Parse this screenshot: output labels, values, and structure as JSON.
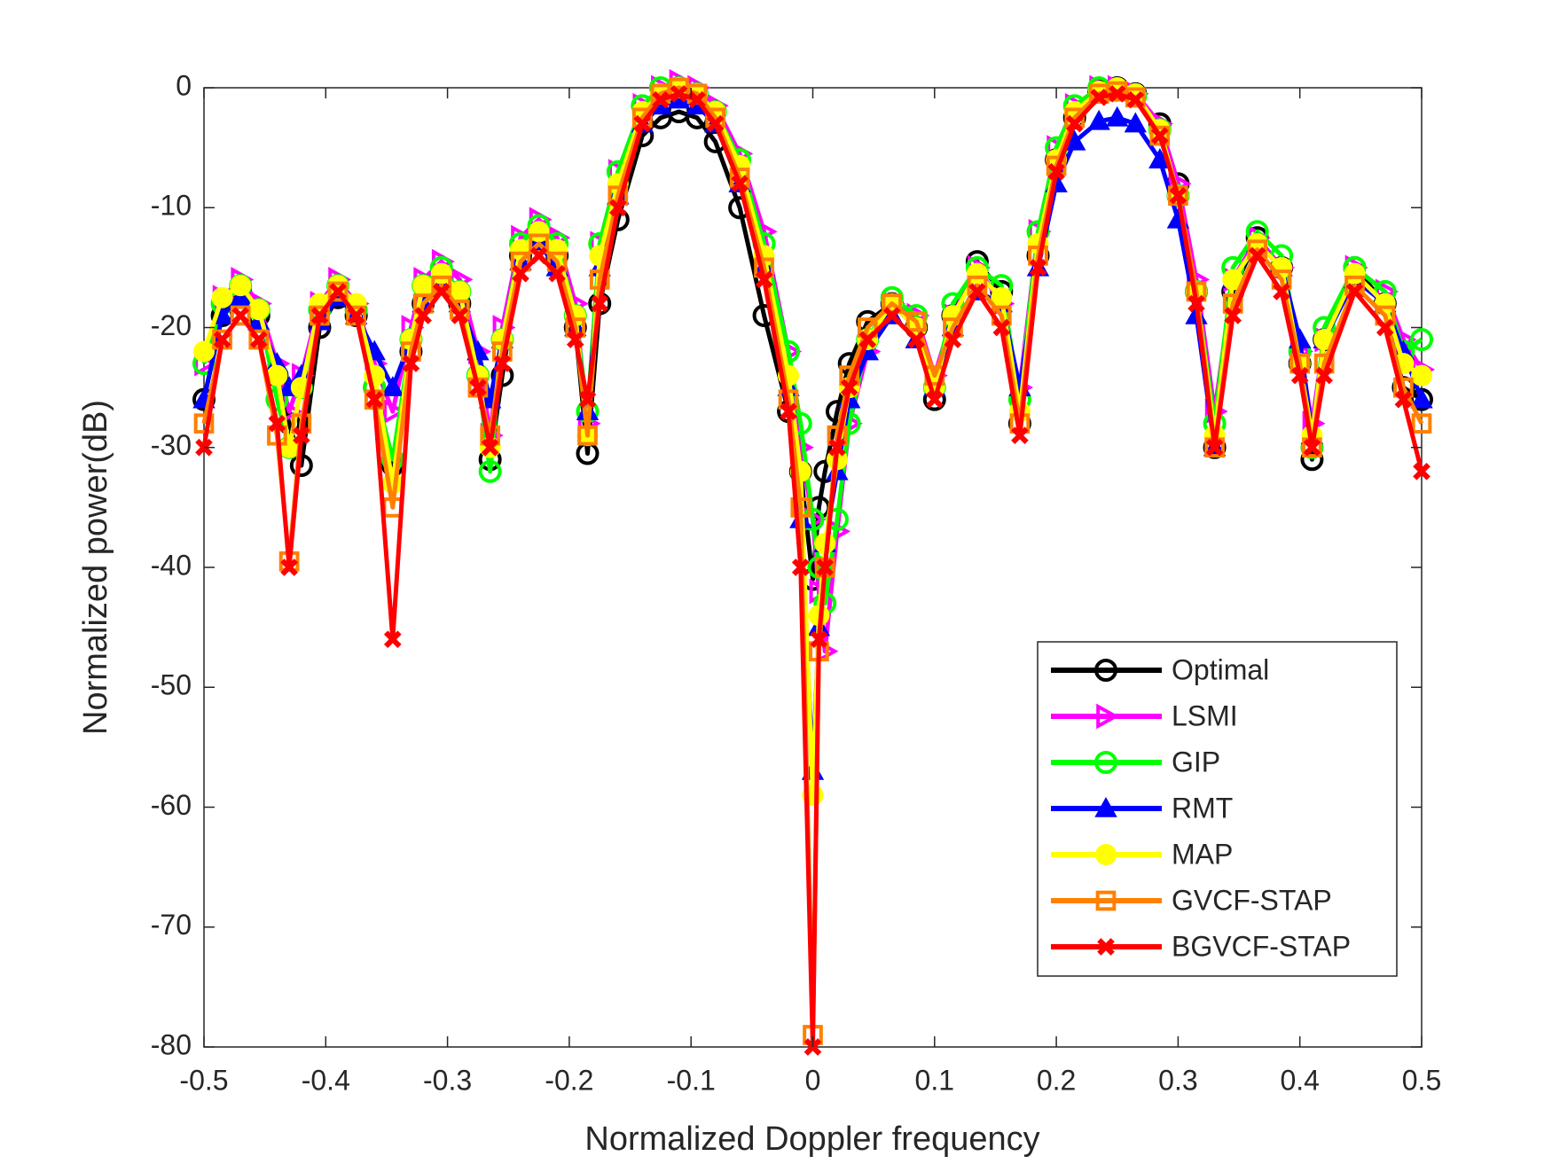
{
  "chart_data": {
    "type": "line",
    "xlabel": "Normalized Doppler frequency",
    "ylabel": "Normalized power(dB)",
    "x": [
      -0.5,
      -0.485,
      -0.47,
      -0.455,
      -0.44,
      -0.43,
      -0.42,
      -0.405,
      -0.39,
      -0.375,
      -0.36,
      -0.345,
      -0.33,
      -0.32,
      -0.305,
      -0.29,
      -0.275,
      -0.265,
      -0.255,
      -0.24,
      -0.225,
      -0.21,
      -0.195,
      -0.185,
      -0.175,
      -0.16,
      -0.14,
      -0.125,
      -0.11,
      -0.095,
      -0.08,
      -0.06,
      -0.04,
      -0.02,
      -0.01,
      0,
      0.005,
      0.01,
      0.02,
      0.03,
      0.045,
      0.065,
      0.085,
      0.1,
      0.115,
      0.135,
      0.155,
      0.17,
      0.185,
      0.2,
      0.215,
      0.235,
      0.25,
      0.265,
      0.285,
      0.3,
      0.315,
      0.33,
      0.345,
      0.365,
      0.385,
      0.4,
      0.41,
      0.42,
      0.445,
      0.47,
      0.485,
      0.5
    ],
    "series": [
      {
        "name": "Optimal",
        "color": "#000000",
        "marker": "circle",
        "values": [
          -26,
          -19,
          -17,
          -19,
          -24,
          -28,
          -31.5,
          -20,
          -17.5,
          -19,
          -25,
          -31.5,
          -22,
          -18,
          -16,
          -18,
          -24,
          -31,
          -24,
          -14,
          -12.5,
          -14,
          -20,
          -30.5,
          -18,
          -11,
          -4,
          -2.5,
          -2,
          -2.5,
          -4.5,
          -10,
          -19,
          -27,
          -32,
          -41,
          -35,
          -32,
          -27,
          -23,
          -19.5,
          -18,
          -20,
          -26,
          -19,
          -14.5,
          -17,
          -28,
          -14,
          -6,
          -2.5,
          -0.3,
          0,
          -0.5,
          -3,
          -8,
          -17,
          -30,
          -17,
          -12.5,
          -15,
          -23,
          -31,
          -21,
          -15,
          -18,
          -25,
          -26
        ]
      },
      {
        "name": "LSMI",
        "color": "#ff00ff",
        "marker": "triangle-right",
        "values": [
          -23,
          -17.5,
          -16,
          -18,
          -23,
          -27,
          -24,
          -18,
          -16,
          -18,
          -23,
          -27,
          -20,
          -16,
          -14.5,
          -16,
          -22,
          -29,
          -20,
          -12.5,
          -11,
          -12.5,
          -18,
          -28,
          -13,
          -7,
          -1.5,
          0,
          0.5,
          0,
          -1.5,
          -5.5,
          -12,
          -22,
          -30,
          -36,
          -42,
          -47,
          -37,
          -28,
          -22,
          -18,
          -19,
          -24,
          -19,
          -15,
          -18,
          -25,
          -12,
          -5,
          -1.5,
          0,
          0,
          -0.5,
          -3,
          -8,
          -16,
          -27,
          -16,
          -12.5,
          -15,
          -22,
          -28,
          -21,
          -15,
          -17,
          -21,
          -23.5
        ]
      },
      {
        "name": "GIP",
        "color": "#00ff00",
        "marker": "circle",
        "values": [
          -23,
          -18,
          -16.5,
          -18.5,
          -26,
          -30,
          -25,
          -18.5,
          -16.5,
          -18.5,
          -25,
          -31,
          -21,
          -16.5,
          -15,
          -17,
          -24,
          -32,
          -21,
          -13,
          -11.5,
          -13,
          -19,
          -27,
          -13,
          -7,
          -1.5,
          0,
          0,
          -0.5,
          -2,
          -6,
          -13,
          -22,
          -28,
          -36,
          -40,
          -43,
          -36,
          -28,
          -21,
          -17.5,
          -19,
          -25,
          -18,
          -15,
          -16.5,
          -26,
          -12,
          -5,
          -1.5,
          0,
          -0.2,
          -0.7,
          -3.5,
          -9,
          -17,
          -28,
          -15,
          -12,
          -14,
          -22,
          -30,
          -20,
          -15,
          -17,
          -22,
          -21
        ]
      },
      {
        "name": "RMT",
        "color": "#0000ff",
        "marker": "triangle-up",
        "values": [
          -26,
          -19,
          -17.5,
          -19.5,
          -23,
          -25,
          -24,
          -19.5,
          -17.5,
          -19,
          -22,
          -25,
          -21,
          -18,
          -16.5,
          -18,
          -22,
          -26,
          -21,
          -14.5,
          -13,
          -15,
          -20,
          -27,
          -15,
          -9,
          -3,
          -1.5,
          -1,
          -1.5,
          -3,
          -8,
          -15,
          -25,
          -36,
          -57,
          -45,
          -38,
          -32,
          -26,
          -22,
          -19,
          -21,
          -25,
          -20,
          -17,
          -18,
          -25,
          -15,
          -8,
          -4.5,
          -2.8,
          -2.5,
          -3,
          -6,
          -11,
          -19,
          -30,
          -16,
          -13,
          -15,
          -21,
          -29,
          -21,
          -16,
          -18,
          -22,
          -26
        ]
      },
      {
        "name": "MAP",
        "color": "#ffff00",
        "marker": "dot",
        "values": [
          -22,
          -17.5,
          -16.5,
          -18.5,
          -24,
          -30,
          -25,
          -18,
          -16.5,
          -18,
          -24,
          -33,
          -21,
          -16.5,
          -15.5,
          -17,
          -24,
          -30,
          -21,
          -13.5,
          -12,
          -13.5,
          -19,
          -29,
          -14,
          -8,
          -2,
          -0.5,
          0,
          -0.5,
          -2,
          -6.5,
          -14,
          -24,
          -32,
          -59,
          -44,
          -38,
          -31,
          -25,
          -21,
          -18,
          -20,
          -25,
          -19,
          -15.5,
          -17.5,
          -27,
          -13,
          -6,
          -2,
          -0.3,
          0,
          -0.5,
          -3.5,
          -9,
          -17,
          -29,
          -16,
          -13,
          -15,
          -23,
          -29,
          -21,
          -15.5,
          -18,
          -23,
          -24
        ]
      },
      {
        "name": "GVCF-STAP",
        "color": "#ff8000",
        "marker": "square",
        "values": [
          -28,
          -21,
          -19,
          -21,
          -29,
          -39.5,
          -28,
          -19,
          -17,
          -19,
          -26,
          -35,
          -22,
          -18,
          -16.5,
          -18.5,
          -25,
          -29,
          -22,
          -14.5,
          -13,
          -14.5,
          -20,
          -29,
          -16,
          -9,
          -2.5,
          -0.5,
          0,
          -0.5,
          -2.5,
          -7.5,
          -15,
          -26,
          -35,
          -79,
          -47,
          -40,
          -29,
          -24,
          -20,
          -18,
          -19.5,
          -24,
          -20,
          -16.5,
          -19,
          -28,
          -14,
          -6.5,
          -2.5,
          -0.5,
          -0.3,
          -0.8,
          -4,
          -9,
          -17,
          -30,
          -18,
          -13.5,
          -16,
          -23,
          -30,
          -23,
          -16.5,
          -19,
          -25,
          -28
        ]
      },
      {
        "name": "BGVCF-STAP",
        "color": "#ff0000",
        "marker": "x",
        "values": [
          -30,
          -21,
          -19,
          -21,
          -28,
          -40,
          -29,
          -19,
          -17,
          -19,
          -26,
          -46,
          -23,
          -19,
          -17,
          -19,
          -25,
          -30,
          -23,
          -15.5,
          -14,
          -15.5,
          -21,
          -26,
          -18,
          -10,
          -3,
          -1,
          -0.5,
          -1,
          -3,
          -8,
          -16,
          -27,
          -40,
          -80,
          -46,
          -40,
          -30,
          -25,
          -21,
          -19,
          -21,
          -26,
          -21,
          -17,
          -20,
          -29,
          -15,
          -7,
          -3,
          -0.8,
          -0.5,
          -1,
          -4,
          -9,
          -18,
          -30,
          -19,
          -14,
          -17,
          -24,
          -30,
          -24,
          -17,
          -20,
          -26,
          -32
        ]
      }
    ],
    "xlim": [
      -0.5,
      0.5
    ],
    "xticks": [
      -0.5,
      -0.4,
      -0.3,
      -0.2,
      -0.1,
      0,
      0.1,
      0.2,
      0.3,
      0.4,
      0.5
    ],
    "ylim": [
      -80,
      0
    ],
    "yticks": [
      -80,
      -70,
      -60,
      -50,
      -40,
      -30,
      -20,
      -10,
      0
    ],
    "grid": false,
    "legend": "lower right"
  }
}
